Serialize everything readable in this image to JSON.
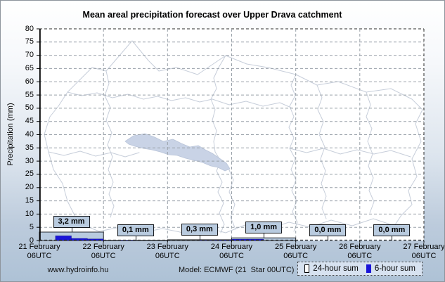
{
  "chart_data": {
    "type": "bar",
    "title": "Mean areal precipitation forecast over Upper Drava catchment",
    "ylabel": "Precipitation (mm)",
    "ylim": [
      0,
      80
    ],
    "ytick_step": 5,
    "grid": true,
    "legend_position": "bottom-right",
    "x_tick_labels": [
      {
        "date": "21 February",
        "time": "06UTC"
      },
      {
        "date": "22 February",
        "time": "06UTC"
      },
      {
        "date": "23 February",
        "time": "06UTC"
      },
      {
        "date": "24 February",
        "time": "06UTC"
      },
      {
        "date": "25 February",
        "time": "06UTC"
      },
      {
        "date": "26 February",
        "time": "06UTC"
      },
      {
        "date": "27 February",
        "time": "06UTC"
      }
    ],
    "series": [
      {
        "name": "24-hour sum",
        "color": "#b9cbdf",
        "legend_swatch": "outline",
        "values_mm": [
          3.2,
          0.1,
          0.3,
          1.0,
          0.0,
          0.0
        ],
        "value_labels": [
          "3,2 mm",
          "0,1 mm",
          "0,3 mm",
          "1,0 mm",
          "0,0 mm",
          "0,0 mm"
        ]
      },
      {
        "name": "6-hour sum",
        "color": "#1a15d8",
        "legend_swatch": "solid",
        "values_mm_per_6h": [
          [
            0.0,
            1.8,
            0.8,
            0.6
          ],
          [
            0.0,
            0.1,
            0.0,
            0.0
          ],
          [
            0.0,
            0.0,
            0.1,
            0.2
          ],
          [
            0.5,
            0.5,
            0.0,
            0.0
          ],
          [
            0.0,
            0.0,
            0.0,
            0.0
          ],
          [
            0.0,
            0.0,
            0.0,
            0.0
          ]
        ]
      }
    ]
  },
  "footer": {
    "website": "www.hydroinfo.hu",
    "model": "Model: ECMWF (21  Star 00UTC)"
  }
}
